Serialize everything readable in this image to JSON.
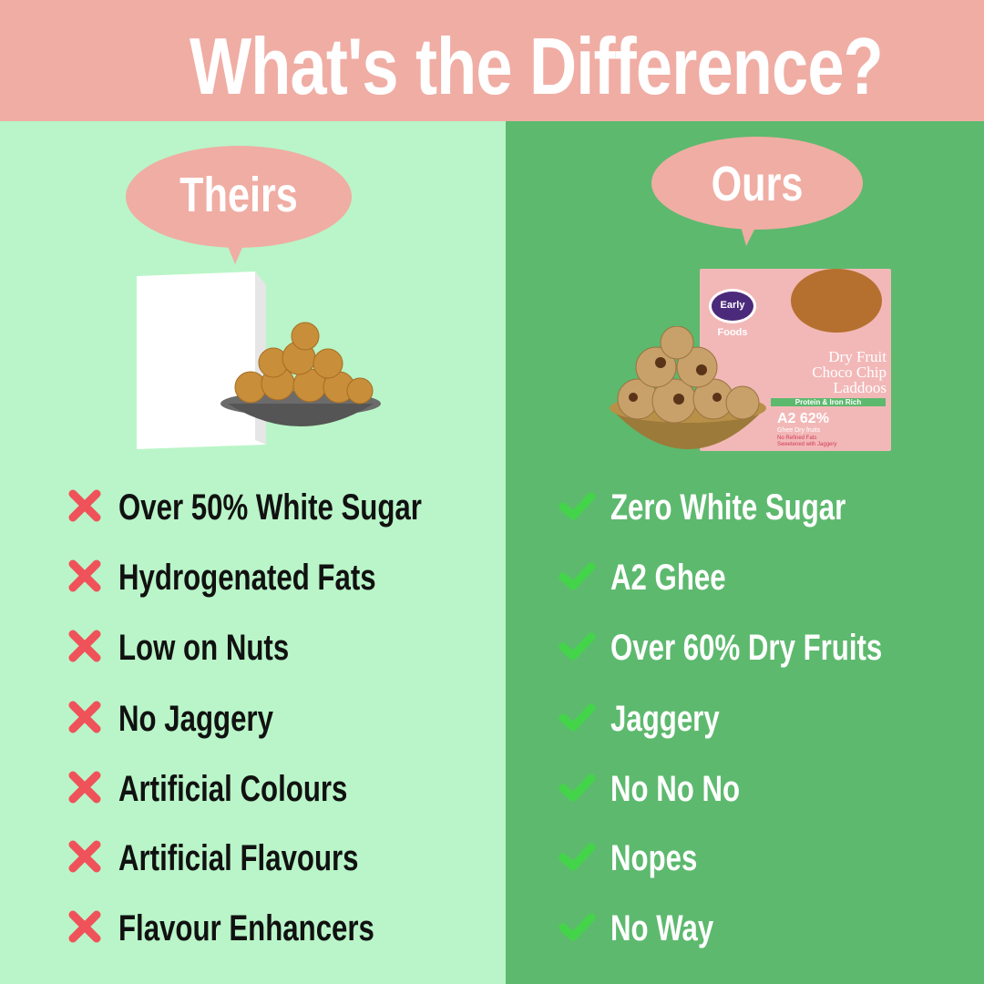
{
  "header": {
    "title": "What's the Difference?"
  },
  "theirs": {
    "label": "Theirs",
    "items": [
      "Over 50% White Sugar",
      "Hydrogenated Fats",
      "Low on Nuts",
      "No Jaggery",
      "Artificial Colours",
      "Artificial Flavours",
      "Flavour Enhancers"
    ],
    "icon": "cross-icon"
  },
  "ours": {
    "label": "Ours",
    "items": [
      "Zero White Sugar",
      "A2 Ghee",
      "Over 60% Dry Fruits",
      "Jaggery",
      "No No No",
      "Nopes",
      "No Way"
    ],
    "icon": "check-icon",
    "product": {
      "brand": "Early Foods",
      "name_line1": "Dry Fruit",
      "name_line2": "Choco Chip",
      "name_line3": "Laddoos",
      "tag": "Protein & Iron Rich",
      "stat1_big": "A2",
      "stat1_small": "Ghee",
      "stat2_big": "62%",
      "stat2_small": "Dry fruits",
      "note1": "No Refined Fats",
      "note2": "Sweetened with Jaggery"
    }
  },
  "colors": {
    "header": "#F0ADA4",
    "left_bg": "#B9F5C8",
    "right_bg": "#5DB96E",
    "cross": "#F0525A",
    "check": "#44D44A"
  }
}
